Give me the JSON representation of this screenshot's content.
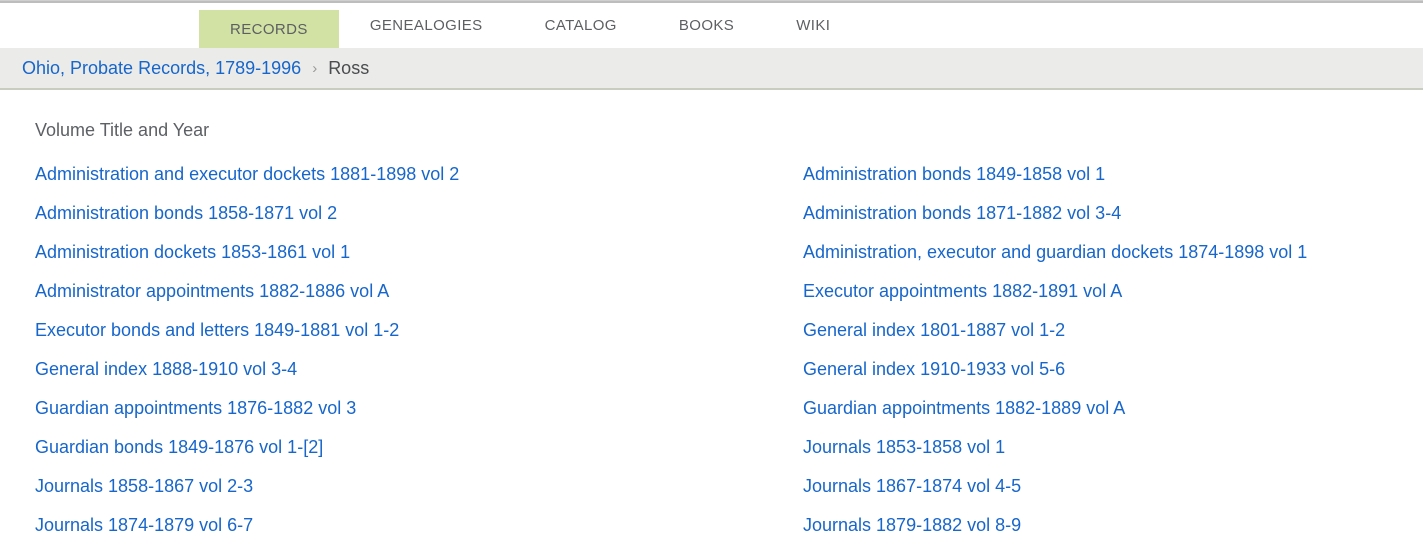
{
  "nav": {
    "tabs": [
      {
        "label": "RECORDS",
        "active": true
      },
      {
        "label": "GENEALOGIES",
        "active": false
      },
      {
        "label": "CATALOG",
        "active": false
      },
      {
        "label": "BOOKS",
        "active": false
      },
      {
        "label": "WIKI",
        "active": false
      }
    ]
  },
  "breadcrumb": {
    "collection_link": "Ohio, Probate Records, 1789-1996",
    "separator": "›",
    "current": "Ross"
  },
  "volumes": {
    "header": "Volume Title and Year",
    "left": [
      "Administration and executor dockets 1881-1898 vol 2",
      "Administration bonds 1858-1871 vol 2",
      "Administration dockets 1853-1861 vol 1",
      "Administrator appointments 1882-1886 vol A",
      "Executor bonds and letters 1849-1881 vol 1-2",
      "General index 1888-1910 vol 3-4",
      "Guardian appointments 1876-1882 vol 3",
      "Guardian bonds 1849-1876 vol 1-[2]",
      "Journals 1858-1867 vol 2-3",
      "Journals 1874-1879 vol 6-7"
    ],
    "right": [
      "Administration bonds 1849-1858 vol 1",
      "Administration bonds 1871-1882 vol 3-4",
      "Administration, executor and guardian dockets 1874-1898 vol 1",
      "Executor appointments 1882-1891 vol A",
      "General index 1801-1887 vol 1-2",
      "General index 1910-1933 vol 5-6",
      "Guardian appointments 1882-1889 vol A",
      "Journals 1853-1858 vol 1",
      "Journals 1867-1874 vol 4-5",
      "Journals 1879-1882 vol 8-9"
    ]
  },
  "colors": {
    "link_blue": "#1766cb",
    "active_tab_bg": "#d2e2a4",
    "breadcrumb_bg": "#ebebe9",
    "nav_text": "#5d5f62",
    "top_border": "#bdbdbd"
  }
}
